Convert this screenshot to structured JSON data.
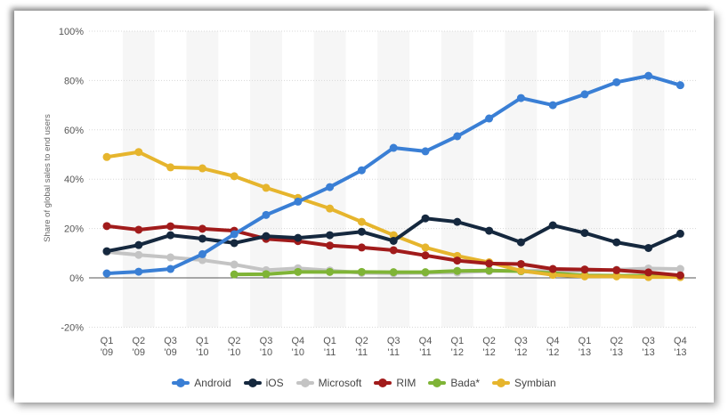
{
  "chart_data": {
    "type": "line",
    "title": "",
    "xlabel": "",
    "ylabel": "Share of global sales to end users",
    "ylim": [
      -20,
      100
    ],
    "yticks": [
      "-20%",
      "0%",
      "20%",
      "40%",
      "60%",
      "80%",
      "100%"
    ],
    "ytick_values": [
      -20,
      0,
      20,
      40,
      60,
      80,
      100
    ],
    "grid": true,
    "legend": "bottom",
    "categories": [
      [
        "Q1",
        "'09"
      ],
      [
        "Q2",
        "'09"
      ],
      [
        "Q3",
        "'09"
      ],
      [
        "Q1",
        "'10"
      ],
      [
        "Q2",
        "'10"
      ],
      [
        "Q3",
        "'10"
      ],
      [
        "Q4",
        "'10"
      ],
      [
        "Q1",
        "'11"
      ],
      [
        "Q2",
        "'11"
      ],
      [
        "Q3",
        "'11"
      ],
      [
        "Q4",
        "'11"
      ],
      [
        "Q1",
        "'12"
      ],
      [
        "Q2",
        "'12"
      ],
      [
        "Q3",
        "'12"
      ],
      [
        "Q4",
        "'12"
      ],
      [
        "Q1",
        "'13"
      ],
      [
        "Q2",
        "'13"
      ],
      [
        "Q3",
        "'13"
      ],
      [
        "Q4",
        "'13"
      ]
    ],
    "series": [
      {
        "name": "Android",
        "color": "#3a7fd5",
        "values": [
          1.8,
          2.5,
          3.6,
          9.6,
          17.7,
          25.5,
          30.9,
          36.8,
          43.6,
          52.7,
          51.3,
          57.4,
          64.6,
          72.9,
          70.0,
          74.4,
          79.3,
          81.9,
          78.1
        ]
      },
      {
        "name": "iOS",
        "color": "#15283e",
        "values": [
          10.8,
          13.3,
          17.3,
          15.9,
          14.1,
          16.9,
          16.2,
          17.3,
          18.7,
          15.0,
          24.1,
          22.7,
          19.1,
          14.4,
          21.3,
          18.2,
          14.4,
          12.1,
          17.9
        ]
      },
      {
        "name": "Microsoft",
        "color": "#c4c4c4",
        "values": [
          10.5,
          9.3,
          8.3,
          7.2,
          5.4,
          3.1,
          3.9,
          3.0,
          2.0,
          1.9,
          2.0,
          2.2,
          2.7,
          2.9,
          2.9,
          2.9,
          3.3,
          3.8,
          3.6
        ]
      },
      {
        "name": "RIM",
        "color": "#a11b1b",
        "values": [
          21.0,
          19.5,
          20.9,
          19.9,
          19.1,
          15.8,
          14.9,
          13.1,
          12.3,
          11.2,
          9.1,
          7.0,
          5.8,
          5.6,
          3.6,
          3.4,
          3.1,
          2.2,
          1.0
        ]
      },
      {
        "name": "Bada*",
        "color": "#7fb436",
        "values": [
          null,
          null,
          null,
          null,
          1.4,
          1.5,
          2.4,
          2.4,
          2.4,
          2.3,
          2.3,
          2.8,
          3.0,
          2.7,
          1.9,
          1.0,
          0.9,
          0.8,
          0.7
        ]
      },
      {
        "name": "Symbian",
        "color": "#e6b52d",
        "values": [
          49.0,
          51.0,
          44.8,
          44.4,
          41.2,
          36.5,
          32.4,
          28.1,
          22.7,
          17.3,
          12.3,
          8.9,
          6.3,
          2.9,
          1.2,
          0.6,
          0.6,
          0.3,
          0.3
        ]
      }
    ]
  }
}
